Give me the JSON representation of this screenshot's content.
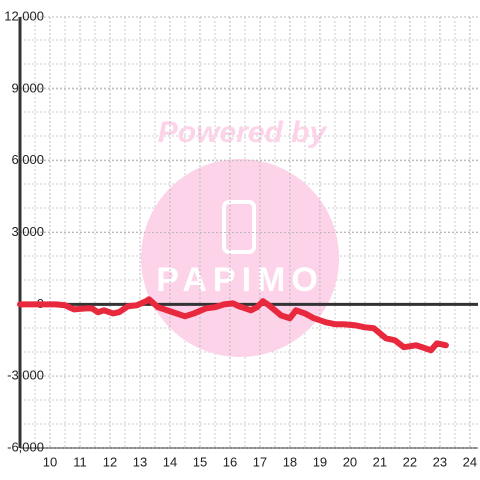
{
  "chart_data": {
    "type": "line",
    "watermark": {
      "text": "Powered by",
      "logo": "PAPIMO"
    },
    "x": [
      9.0,
      9.7,
      10.2,
      10.5,
      10.8,
      11.2,
      11.4,
      11.6,
      11.8,
      12.1,
      12.3,
      12.6,
      12.9,
      13.2,
      13.3,
      13.6,
      14.0,
      14.5,
      14.8,
      15.2,
      15.5,
      15.8,
      16.1,
      16.3,
      16.7,
      16.9,
      17.1,
      17.3,
      17.7,
      18.0,
      18.2,
      18.5,
      18.8,
      19.2,
      19.5,
      19.8,
      20.2,
      20.5,
      20.8,
      21.2,
      21.5,
      21.8,
      22.2,
      22.5,
      22.7,
      22.9,
      23.2
    ],
    "series": [
      {
        "color": "#e8283c",
        "values": [
          0,
          0,
          0,
          -40,
          -210,
          -170,
          -170,
          -330,
          -250,
          -380,
          -330,
          -80,
          -40,
          130,
          210,
          -120,
          -290,
          -500,
          -380,
          -170,
          -120,
          0,
          40,
          -80,
          -250,
          -120,
          130,
          -40,
          -460,
          -580,
          -250,
          -380,
          -580,
          -750,
          -830,
          -830,
          -880,
          -960,
          -1000,
          -1420,
          -1500,
          -1790,
          -1710,
          -1830,
          -1920,
          -1630,
          -1710
        ]
      }
    ],
    "xlim": [
      9,
      24.27
    ],
    "xticks": [
      10,
      11,
      12,
      13,
      14,
      15,
      16,
      17,
      18,
      19,
      20,
      21,
      22,
      23,
      24
    ],
    "ylim": [
      -6000,
      12000
    ],
    "yticks": [
      {
        "value": -6000,
        "label": "-6,000"
      },
      {
        "value": -3000,
        "label": "-3,000"
      },
      0,
      {
        "value": 3000,
        "label": "3,000"
      },
      {
        "value": 6000,
        "label": "6,000"
      },
      {
        "value": 9000,
        "label": "9,000"
      },
      {
        "value": 12000,
        "label": "12,000"
      }
    ],
    "grid": true
  }
}
